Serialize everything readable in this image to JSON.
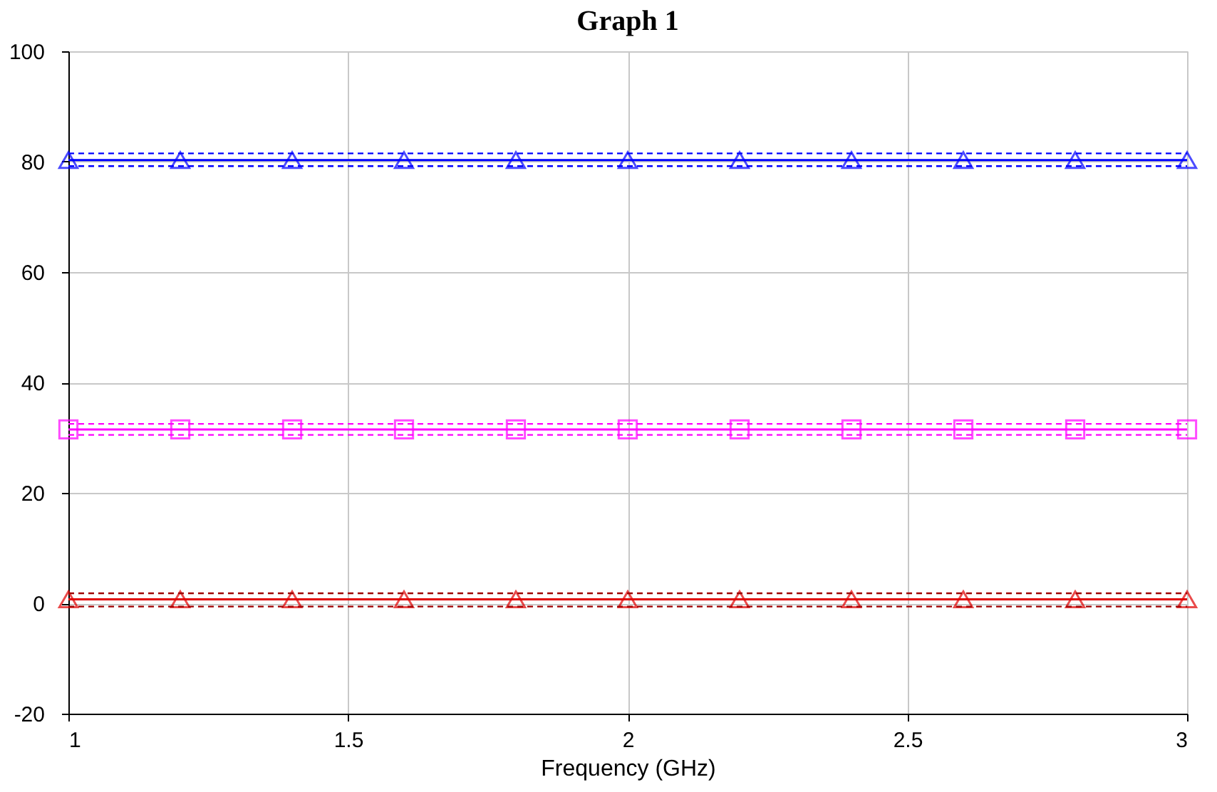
{
  "chart_data": {
    "type": "line",
    "title": "Graph 1",
    "xlabel": "Frequency (GHz)",
    "x": [
      1,
      1.2,
      1.4,
      1.6,
      1.8,
      2,
      2.2,
      2.4,
      2.6,
      2.8,
      3
    ],
    "xlim": [
      1,
      3
    ],
    "xticks": [
      1,
      1.5,
      2,
      2.5,
      3
    ],
    "ylim": [
      -20,
      100
    ],
    "yticks": [
      -20,
      0,
      20,
      40,
      60,
      80,
      100
    ],
    "grid": true,
    "series": [
      {
        "color": "#0000ff",
        "marker": "triangle",
        "line_style": "solid",
        "values": [
          80.3,
          80.3,
          80.3,
          80.3,
          80.3,
          80.3,
          80.3,
          80.3,
          80.3,
          80.3,
          80.3
        ]
      },
      {
        "color": "#0000ff",
        "marker": "none",
        "line_style": "dashed",
        "values": [
          81.5,
          81.5,
          81.5,
          81.5,
          81.5,
          81.5,
          81.5,
          81.5,
          81.5,
          81.5,
          81.5
        ]
      },
      {
        "color": "#0000ff",
        "marker": "none",
        "line_style": "dashed",
        "values": [
          79.2,
          79.2,
          79.2,
          79.2,
          79.2,
          79.2,
          79.2,
          79.2,
          79.2,
          79.2,
          79.2
        ]
      },
      {
        "color": "#ff00ff",
        "marker": "square",
        "line_style": "solid",
        "values": [
          31.5,
          31.5,
          31.5,
          31.5,
          31.5,
          31.5,
          31.5,
          31.5,
          31.5,
          31.5,
          31.5
        ]
      },
      {
        "color": "#ff00ff",
        "marker": "none",
        "line_style": "dashed",
        "values": [
          32.5,
          32.5,
          32.5,
          32.5,
          32.5,
          32.5,
          32.5,
          32.5,
          32.5,
          32.5,
          32.5
        ]
      },
      {
        "color": "#ff00ff",
        "marker": "none",
        "line_style": "dashed",
        "values": [
          30.5,
          30.5,
          30.5,
          30.5,
          30.5,
          30.5,
          30.5,
          30.5,
          30.5,
          30.5,
          30.5
        ]
      },
      {
        "color": "#e00000",
        "marker": "triangle",
        "line_style": "solid",
        "values": [
          0.7,
          0.7,
          0.7,
          0.7,
          0.7,
          0.7,
          0.7,
          0.7,
          0.7,
          0.7,
          0.7
        ]
      },
      {
        "color": "#a00000",
        "marker": "none",
        "line_style": "dashed",
        "values": [
          1.8,
          1.8,
          1.8,
          1.8,
          1.8,
          1.8,
          1.8,
          1.8,
          1.8,
          1.8,
          1.8
        ]
      },
      {
        "color": "#a00000",
        "marker": "none",
        "line_style": "dashed",
        "values": [
          -0.6,
          -0.6,
          -0.6,
          -0.6,
          -0.6,
          -0.6,
          -0.6,
          -0.6,
          -0.6,
          -0.6,
          -0.6
        ]
      }
    ]
  }
}
